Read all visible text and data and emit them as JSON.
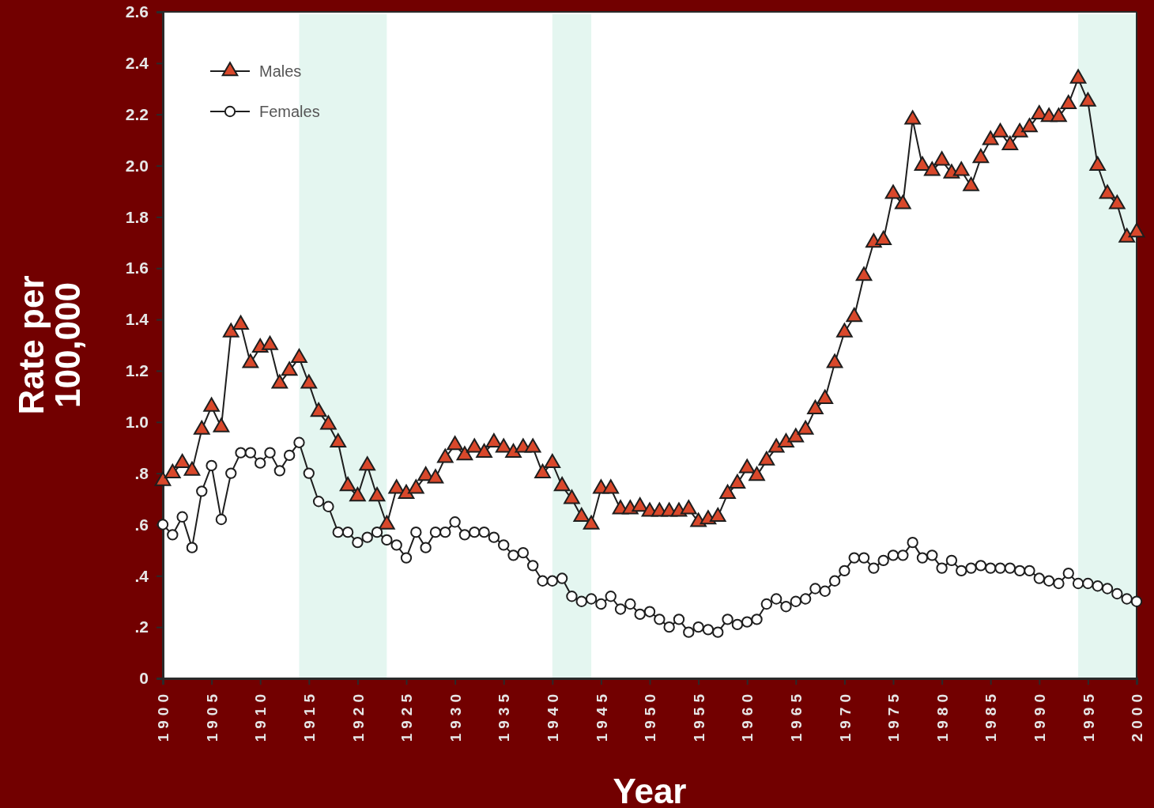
{
  "chart_data": {
    "type": "line",
    "xlabel": "Year",
    "ylabel": "Rate per\n100,000",
    "x": [
      1900,
      1901,
      1902,
      1903,
      1904,
      1905,
      1906,
      1907,
      1908,
      1909,
      1910,
      1911,
      1912,
      1913,
      1914,
      1915,
      1916,
      1917,
      1918,
      1919,
      1920,
      1921,
      1922,
      1923,
      1924,
      1925,
      1926,
      1927,
      1928,
      1929,
      1930,
      1931,
      1932,
      1933,
      1934,
      1935,
      1936,
      1937,
      1938,
      1939,
      1940,
      1941,
      1942,
      1943,
      1944,
      1945,
      1946,
      1947,
      1948,
      1949,
      1950,
      1951,
      1952,
      1953,
      1954,
      1955,
      1956,
      1957,
      1958,
      1959,
      1960,
      1961,
      1962,
      1963,
      1964,
      1965,
      1966,
      1967,
      1968,
      1969,
      1970,
      1971,
      1972,
      1973,
      1974,
      1975,
      1976,
      1977,
      1978,
      1979,
      1980,
      1981,
      1982,
      1983,
      1984,
      1985,
      1986,
      1987,
      1988,
      1989,
      1990,
      1991,
      1992,
      1993,
      1994,
      1995,
      1996,
      1997,
      1998,
      1999,
      2000
    ],
    "series": [
      {
        "name": "Males",
        "color": "#d9482b",
        "marker": "triangle",
        "values": [
          0.77,
          0.8,
          0.84,
          0.81,
          0.97,
          1.06,
          0.98,
          1.35,
          1.38,
          1.23,
          1.29,
          1.3,
          1.15,
          1.2,
          1.25,
          1.15,
          1.04,
          0.99,
          0.92,
          0.75,
          0.71,
          0.83,
          0.71,
          0.6,
          0.74,
          0.72,
          0.74,
          0.79,
          0.78,
          0.86,
          0.91,
          0.87,
          0.9,
          0.88,
          0.92,
          0.9,
          0.88,
          0.9,
          0.9,
          0.8,
          0.84,
          0.75,
          0.7,
          0.63,
          0.6,
          0.74,
          0.74,
          0.66,
          0.66,
          0.67,
          0.65,
          0.65,
          0.65,
          0.65,
          0.66,
          0.61,
          0.62,
          0.63,
          0.72,
          0.76,
          0.82,
          0.79,
          0.85,
          0.9,
          0.92,
          0.94,
          0.97,
          1.05,
          1.09,
          1.23,
          1.35,
          1.41,
          1.57,
          1.7,
          1.71,
          1.89,
          1.85,
          2.18,
          2.0,
          1.98,
          2.02,
          1.97,
          1.98,
          1.92,
          2.03,
          2.1,
          2.13,
          2.08,
          2.13,
          2.15,
          2.2,
          2.19,
          2.19,
          2.24,
          2.34,
          2.25,
          2.0,
          1.89,
          1.85,
          1.72,
          1.74
        ]
      },
      {
        "name": "Females",
        "color": "#ffffff",
        "marker": "circle",
        "values": [
          0.6,
          0.56,
          0.63,
          0.51,
          0.73,
          0.83,
          0.62,
          0.8,
          0.88,
          0.88,
          0.84,
          0.88,
          0.81,
          0.87,
          0.92,
          0.8,
          0.69,
          0.67,
          0.57,
          0.57,
          0.53,
          0.55,
          0.57,
          0.54,
          0.52,
          0.47,
          0.57,
          0.51,
          0.57,
          0.57,
          0.61,
          0.56,
          0.57,
          0.57,
          0.55,
          0.52,
          0.48,
          0.49,
          0.44,
          0.38,
          0.38,
          0.39,
          0.32,
          0.3,
          0.31,
          0.29,
          0.32,
          0.27,
          0.29,
          0.25,
          0.26,
          0.23,
          0.2,
          0.23,
          0.18,
          0.2,
          0.19,
          0.18,
          0.23,
          0.21,
          0.22,
          0.23,
          0.29,
          0.31,
          0.28,
          0.3,
          0.31,
          0.35,
          0.34,
          0.38,
          0.42,
          0.47,
          0.47,
          0.43,
          0.46,
          0.48,
          0.48,
          0.53,
          0.47,
          0.48,
          0.43,
          0.46,
          0.42,
          0.43,
          0.44,
          0.43,
          0.43,
          0.43,
          0.42,
          0.42,
          0.39,
          0.38,
          0.37,
          0.41,
          0.37,
          0.37,
          0.36,
          0.35,
          0.33,
          0.31,
          0.3
        ]
      }
    ],
    "xlim": [
      1900,
      2000
    ],
    "xticks": [
      1900,
      1905,
      1910,
      1915,
      1920,
      1925,
      1930,
      1935,
      1940,
      1945,
      1950,
      1955,
      1960,
      1965,
      1970,
      1975,
      1980,
      1985,
      1990,
      1995,
      2000
    ],
    "ylim": [
      0,
      2.6
    ],
    "yticks": [
      0,
      {
        "value": 0.2,
        "label": ".2"
      },
      {
        "value": 0.4,
        "label": ".4"
      },
      {
        "value": 0.6,
        "label": ".6"
      },
      {
        "value": 0.8,
        "label": ".8"
      },
      {
        "value": 1.0,
        "label": "1.0"
      },
      1.2,
      1.4,
      1.6,
      1.8,
      {
        "value": 2.0,
        "label": "2.0"
      },
      2.2,
      2.4,
      2.6
    ],
    "bands": [
      {
        "axis": "x",
        "from": 1914,
        "to": 1923,
        "color": "#e4f6f0"
      },
      {
        "axis": "x",
        "from": 1940,
        "to": 1944,
        "color": "#e4f6f0"
      },
      {
        "axis": "x",
        "from": 1994,
        "to": 2000,
        "color": "#e4f6f0"
      }
    ],
    "grid": false,
    "legend": "top left",
    "line_style": "solid"
  }
}
